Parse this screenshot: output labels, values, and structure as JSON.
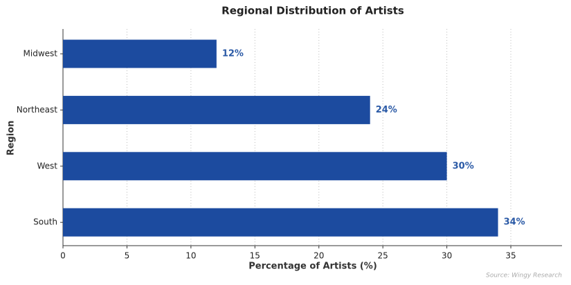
{
  "chart_data": {
    "type": "barh",
    "title": "Regional Distribution of Artists",
    "xlabel": "Percentage of Artists (%)",
    "ylabel": "Region",
    "categories": [
      "Midwest",
      "Northeast",
      "West",
      "South"
    ],
    "values": [
      12,
      24,
      30,
      34
    ],
    "value_labels": [
      "12%",
      "24%",
      "30%",
      "34%"
    ],
    "color": "#1c4b9f",
    "label_color": "#2b5aa6",
    "xlim": [
      0,
      39
    ],
    "xticks": [
      0,
      5,
      10,
      15,
      20,
      25,
      30,
      35
    ],
    "grid": true,
    "source": "Source: Wingy Research"
  }
}
